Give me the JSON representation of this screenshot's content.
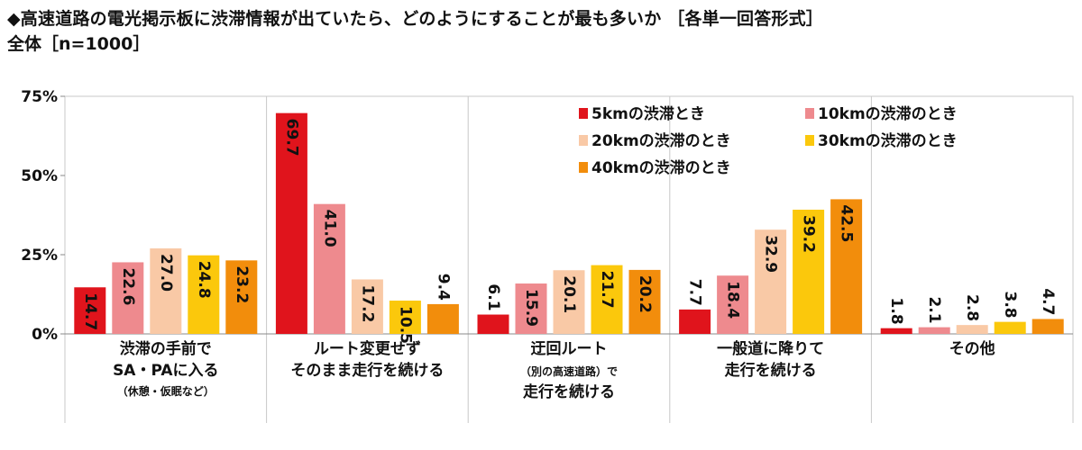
{
  "header": {
    "title": "◆高速道路の電光掲示板に渋滞情報が出ていたら、どのようにすることが最も多いか ［各単一回答形式］",
    "subtitle": "全体［n=1000］"
  },
  "chart_data": {
    "type": "bar",
    "ylim": [
      0,
      75
    ],
    "yticks": [
      "0%",
      "25%",
      "50%",
      "75%"
    ],
    "ytick_values": [
      0,
      25,
      50,
      75
    ],
    "grid": false,
    "legend_position": "top-right",
    "categories": [
      {
        "lines": [
          "渋滞の手前で",
          "SA・PAに入る"
        ],
        "note": "（休憩・仮眠など）"
      },
      {
        "lines": [
          "ルート変更せず",
          "そのまま走行を続ける"
        ]
      },
      {
        "lines": [
          "迂回ルート",
          "（別の高速道路）で",
          "走行を続ける"
        ]
      },
      {
        "lines": [
          "一般道に降りて",
          "走行を続ける"
        ]
      },
      {
        "lines": [
          "その他"
        ]
      }
    ],
    "series": [
      {
        "name": "5kmの渋滞とき",
        "color": "#e0141c",
        "values": [
          14.7,
          69.7,
          6.1,
          7.7,
          1.8
        ],
        "labels": [
          "14.7",
          "69.7",
          "6.1",
          "7.7",
          "1.8"
        ]
      },
      {
        "name": "10kmの渋滞のとき",
        "color": "#ee8a8e",
        "values": [
          22.6,
          41.0,
          15.9,
          18.4,
          2.1
        ],
        "labels": [
          "22.6",
          "41.0",
          "15.9",
          "18.4",
          "2.1"
        ]
      },
      {
        "name": "20kmの渋滞のとき",
        "color": "#f9c9a6",
        "values": [
          27.0,
          17.2,
          20.1,
          32.9,
          2.8
        ],
        "labels": [
          "27.0",
          "17.2",
          "20.1",
          "32.9",
          "2.8"
        ]
      },
      {
        "name": "30kmの渋滞のとき",
        "color": "#fbc80c",
        "values": [
          24.8,
          10.5,
          21.7,
          39.2,
          3.8
        ],
        "labels": [
          "24.8",
          "10.5",
          "21.7",
          "39.2",
          "3.8"
        ]
      },
      {
        "name": "40kmの渋滞のとき",
        "color": "#f28d0c",
        "values": [
          23.2,
          9.4,
          20.2,
          42.5,
          4.7
        ],
        "labels": [
          "23.2",
          "9.4",
          "20.2",
          "42.5",
          "4.7"
        ]
      }
    ]
  }
}
